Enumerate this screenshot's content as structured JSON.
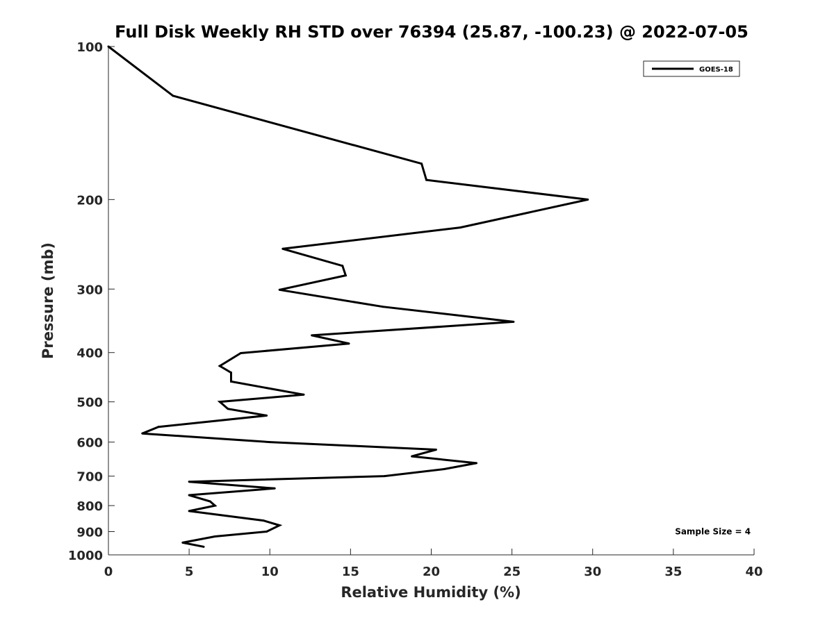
{
  "chart_data": {
    "type": "line",
    "title": "Full Disk Weekly RH STD over 76394 (25.87, -100.23) @ 2022-07-05",
    "xlabel": "Relative Humidity (%)",
    "ylabel": "Pressure (mb)",
    "xlim": [
      0,
      40
    ],
    "ylim": [
      100,
      1000
    ],
    "yscale": "log",
    "y_reversed": true,
    "xticks": [
      0,
      5,
      10,
      15,
      20,
      25,
      30,
      35,
      40
    ],
    "xtick_labels": [
      "0",
      "5",
      "10",
      "15",
      "20",
      "25",
      "30",
      "35",
      "40"
    ],
    "yticks": [
      100,
      200,
      300,
      400,
      500,
      600,
      700,
      800,
      900,
      1000
    ],
    "ytick_labels": [
      "100",
      "200",
      "300",
      "400",
      "500",
      "600",
      "700",
      "800",
      "900",
      "1000"
    ],
    "grid": false,
    "legend_position": "top-right",
    "series": [
      {
        "name": "GOES-18",
        "color": "#000000",
        "x": [
          0.0,
          4.0,
          19.4,
          19.7,
          29.7,
          21.8,
          10.8,
          14.5,
          14.7,
          10.6,
          17.0,
          25.1,
          12.6,
          14.9,
          8.2,
          6.9,
          7.6,
          7.6,
          12.1,
          6.9,
          7.4,
          9.8,
          3.1,
          2.1,
          10.0,
          20.3,
          18.8,
          22.8,
          20.8,
          17.1,
          5.0,
          10.3,
          5.0,
          6.3,
          6.6,
          5.0,
          9.6,
          10.6,
          9.8,
          6.6,
          4.6,
          5.9
        ],
        "y": [
          100,
          125,
          170,
          183,
          200,
          227,
          250,
          270,
          282,
          301,
          325,
          348,
          370,
          384,
          401,
          425,
          438,
          456,
          484,
          500,
          516,
          532,
          560,
          577,
          600,
          621,
          640,
          660,
          678,
          700,
          718,
          740,
          763,
          785,
          800,
          820,
          856,
          875,
          900,
          920,
          946,
          964
        ]
      }
    ],
    "annotations": [
      {
        "text": "Sample Size = 4",
        "x": 35.1,
        "y": 900
      }
    ]
  }
}
